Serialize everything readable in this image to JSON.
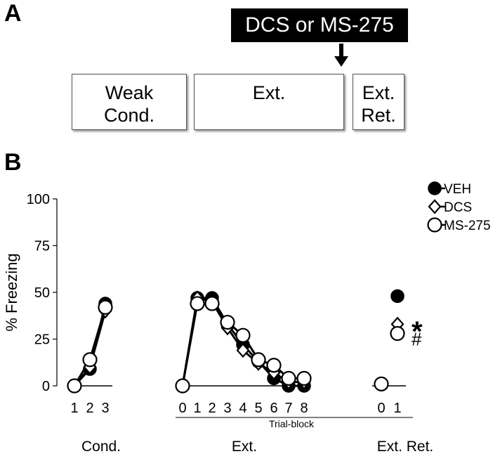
{
  "panel_a": {
    "letter": "A",
    "drug_label": "DCS or MS-275",
    "boxes": [
      {
        "line1": "Weak",
        "line2": "Cond."
      },
      {
        "line1": "Ext.",
        "line2": ""
      },
      {
        "line1": "Ext.",
        "line2": "Ret."
      }
    ]
  },
  "panel_b": {
    "letter": "B"
  },
  "chart_data": {
    "type": "line",
    "ylabel": "% Freezing",
    "ylim": [
      0,
      100
    ],
    "yticks": [
      0,
      25,
      50,
      75,
      100
    ],
    "xlabel": "Trial-block",
    "phases": [
      {
        "name": "Cond.",
        "ticks": [
          "1",
          "2",
          "3"
        ]
      },
      {
        "name": "Ext.",
        "ticks": [
          "0",
          "1",
          "2",
          "3",
          "4",
          "5",
          "6",
          "7",
          "8"
        ]
      },
      {
        "name": "Ext. Ret.",
        "ticks": [
          "0",
          "1"
        ]
      }
    ],
    "legend_position": "top-right",
    "series": [
      {
        "name": "VEH",
        "marker": "filled-circle",
        "color": "#000000",
        "cond": [
          0,
          9,
          44
        ],
        "ext": [
          0,
          47,
          47,
          33,
          22,
          13,
          4,
          0,
          0
        ],
        "ret": [
          1,
          48
        ]
      },
      {
        "name": "DCS",
        "marker": "open-diamond",
        "color": "#000000",
        "cond": [
          0,
          10,
          40
        ],
        "ext": [
          0,
          47,
          45,
          31,
          19,
          12,
          7,
          2,
          2
        ],
        "ret": [
          1,
          33
        ]
      },
      {
        "name": "MS-275",
        "marker": "open-circle",
        "color": "#000000",
        "cond": [
          0,
          14,
          42
        ],
        "ext": [
          0,
          44,
          44,
          34,
          27,
          14,
          11,
          4,
          4
        ],
        "ret": [
          1,
          28
        ]
      }
    ],
    "annotations": [
      "*",
      "#"
    ]
  }
}
